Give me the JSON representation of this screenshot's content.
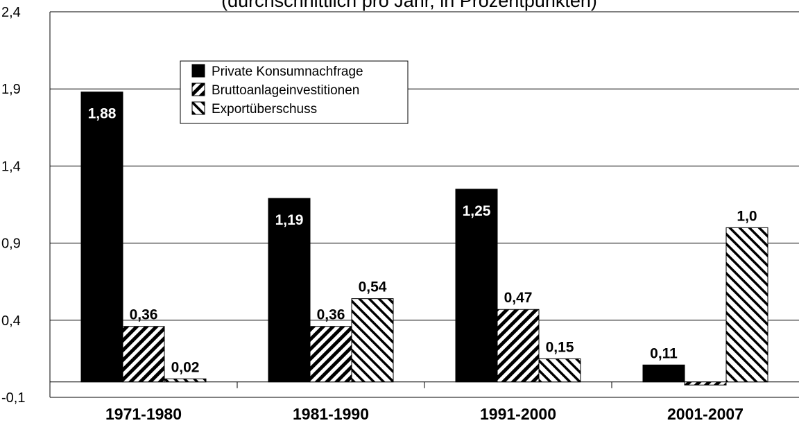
{
  "chart_data": {
    "type": "bar",
    "subtitle": "(durchschnittlich pro Jahr, in Prozentpunkten)",
    "categories": [
      "1971-1980",
      "1981-1990",
      "1991-2000",
      "2001-2007"
    ],
    "series": [
      {
        "name": "Private Konsumnachfrage",
        "color": "#000000",
        "pattern": "solid",
        "values": [
          1.88,
          1.19,
          1.25,
          0.11
        ],
        "value_labels": [
          "1,88",
          "1,19",
          "1,25",
          "0,11"
        ]
      },
      {
        "name": "Bruttoanlageinvestitionen",
        "color": "#000000",
        "pattern": "backslash",
        "values": [
          0.36,
          0.36,
          0.47,
          -0.02
        ],
        "value_labels": [
          "0,36",
          "0,36",
          "0,47",
          null
        ]
      },
      {
        "name": "Exportüberschuss",
        "color": "#000000",
        "pattern": "slash",
        "values": [
          0.02,
          0.54,
          0.15,
          1.0
        ],
        "value_labels": [
          "0,02",
          "0,54",
          "0,15",
          "1,0"
        ]
      }
    ],
    "ylim": [
      -0.1,
      2.4
    ],
    "yticks": [
      {
        "value": -0.1,
        "label": "-0,1"
      },
      {
        "value": 0.4,
        "label": "0,4"
      },
      {
        "value": 0.9,
        "label": "0,9"
      },
      {
        "value": 1.4,
        "label": "1,4"
      },
      {
        "value": 1.9,
        "label": "1,9"
      },
      {
        "value": 2.4,
        "label": "2,4"
      }
    ],
    "grid": true,
    "legend": "upper left"
  }
}
